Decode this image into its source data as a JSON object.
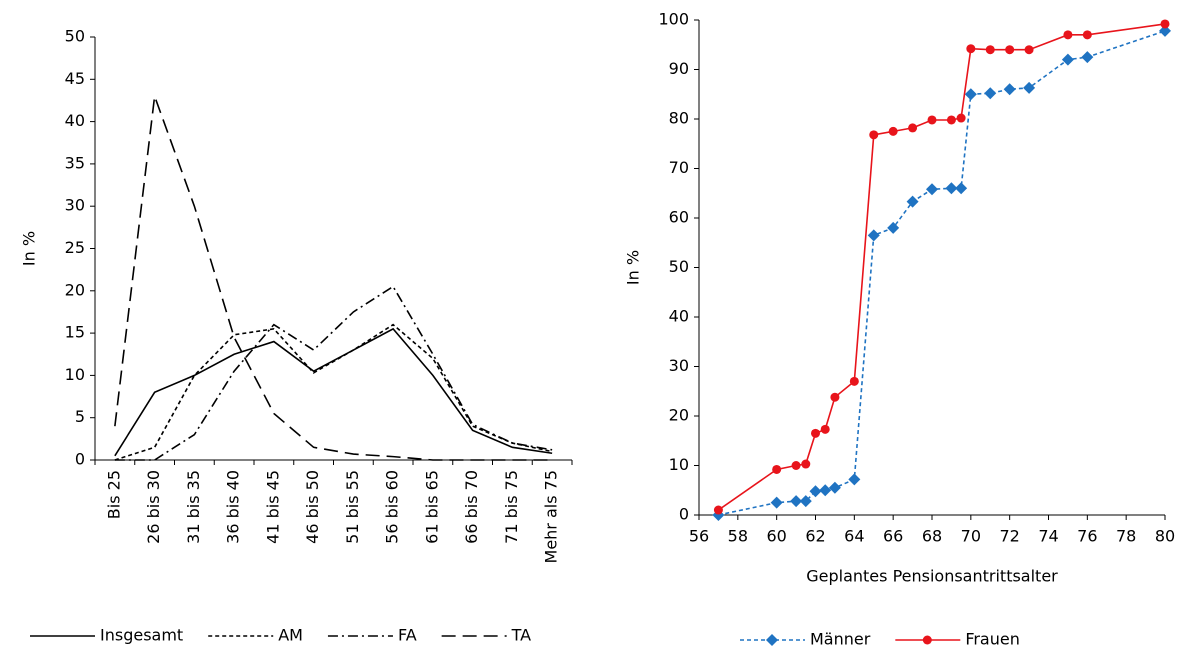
{
  "chart_data": [
    {
      "type": "line",
      "ylabel": "In %",
      "categories": [
        "Bis 25",
        "26 bis 30",
        "31 bis 35",
        "36 bis 40",
        "41 bis 45",
        "46 bis 50",
        "51 bis 55",
        "56 bis 60",
        "61 bis 65",
        "66 bis 70",
        "71 bis 75",
        "Mehr als 75"
      ],
      "ylim": [
        0,
        50
      ],
      "yticks": [
        0,
        5,
        10,
        15,
        20,
        25,
        30,
        35,
        40,
        45,
        50
      ],
      "series": [
        {
          "name": "Insgesamt",
          "color": "#000000",
          "line_style": "solid",
          "values": [
            0.5,
            8,
            10,
            12.5,
            14,
            10.5,
            13,
            15.5,
            10,
            3.5,
            1.5,
            0.8
          ]
        },
        {
          "name": "AM",
          "color": "#000000",
          "line_style": "dotted",
          "values": [
            0,
            1.5,
            10,
            14.8,
            15.5,
            10.3,
            13,
            16,
            12,
            4,
            2,
            1
          ]
        },
        {
          "name": "FA",
          "color": "#000000",
          "line_style": "dashdot",
          "values": [
            0,
            0,
            3,
            10.5,
            16,
            13,
            17.5,
            20.5,
            12.5,
            4.2,
            2,
            1.2
          ]
        },
        {
          "name": "TA",
          "color": "#000000",
          "line_style": "dashed",
          "values": [
            4,
            43,
            30,
            14.5,
            5.5,
            1.5,
            0.7,
            0.4,
            0,
            0,
            0,
            0
          ]
        }
      ]
    },
    {
      "type": "line",
      "xlabel": "Geplantes Pensionsantrittsalter",
      "ylabel": "In %",
      "x": [
        57,
        60,
        61,
        61.5,
        62,
        62.5,
        63,
        64,
        65,
        66,
        67,
        68,
        69,
        69.5,
        70,
        71,
        72,
        73,
        75,
        76,
        80
      ],
      "xlim": [
        56,
        80
      ],
      "xticks": [
        56,
        58,
        60,
        62,
        64,
        66,
        68,
        70,
        72,
        74,
        76,
        78,
        80
      ],
      "ylim": [
        0,
        100
      ],
      "yticks": [
        0,
        10,
        20,
        30,
        40,
        50,
        60,
        70,
        80,
        90,
        100
      ],
      "series": [
        {
          "name": "Männer",
          "color": "#1f73c2",
          "line_style": "dotted",
          "marker": "diamond",
          "values": [
            0,
            2.5,
            2.8,
            2.8,
            4.8,
            5,
            5.5,
            7.2,
            56.5,
            58,
            63.3,
            65.8,
            66,
            66,
            85,
            85.2,
            86,
            86.3,
            92,
            92.5,
            97.8
          ]
        },
        {
          "name": "Frauen",
          "color": "#e8141b",
          "line_style": "solid",
          "marker": "circle",
          "values": [
            1,
            9.2,
            10,
            10.3,
            16.5,
            17.3,
            23.8,
            27,
            76.8,
            77.5,
            78.2,
            79.8,
            79.8,
            80.2,
            94.2,
            94,
            94,
            94,
            97,
            97,
            99.2
          ]
        }
      ]
    }
  ]
}
